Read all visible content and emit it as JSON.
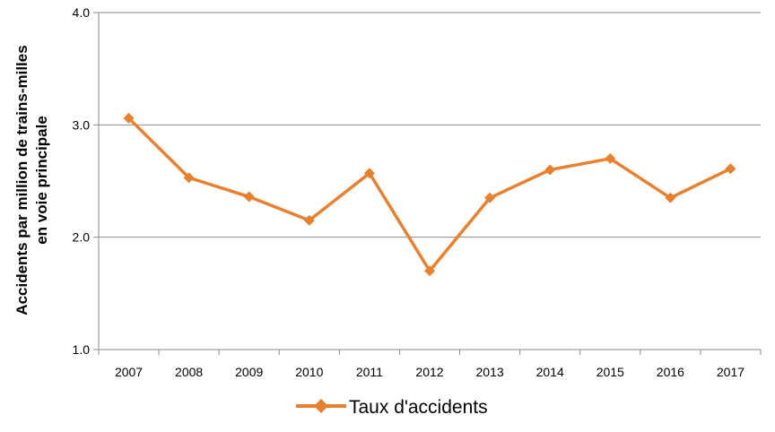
{
  "chart_data": {
    "type": "line",
    "ylabel_lines": [
      "Accidents par million de trains-milles",
      "en voie principale"
    ],
    "xlabel": "",
    "categories": [
      "2007",
      "2008",
      "2009",
      "2010",
      "2011",
      "2012",
      "2013",
      "2014",
      "2015",
      "2016",
      "2017"
    ],
    "y_ticks": [
      "1.0",
      "2.0",
      "3.0",
      "4.0"
    ],
    "ylim": [
      1.0,
      4.0
    ],
    "grid": true,
    "legend_position": "bottom",
    "series": [
      {
        "name": "Taux d'accidents",
        "color": "#e8802e",
        "marker": "diamond",
        "values": [
          3.06,
          2.53,
          2.36,
          2.15,
          2.57,
          1.7,
          2.35,
          2.6,
          2.7,
          2.35,
          2.61
        ]
      }
    ]
  }
}
